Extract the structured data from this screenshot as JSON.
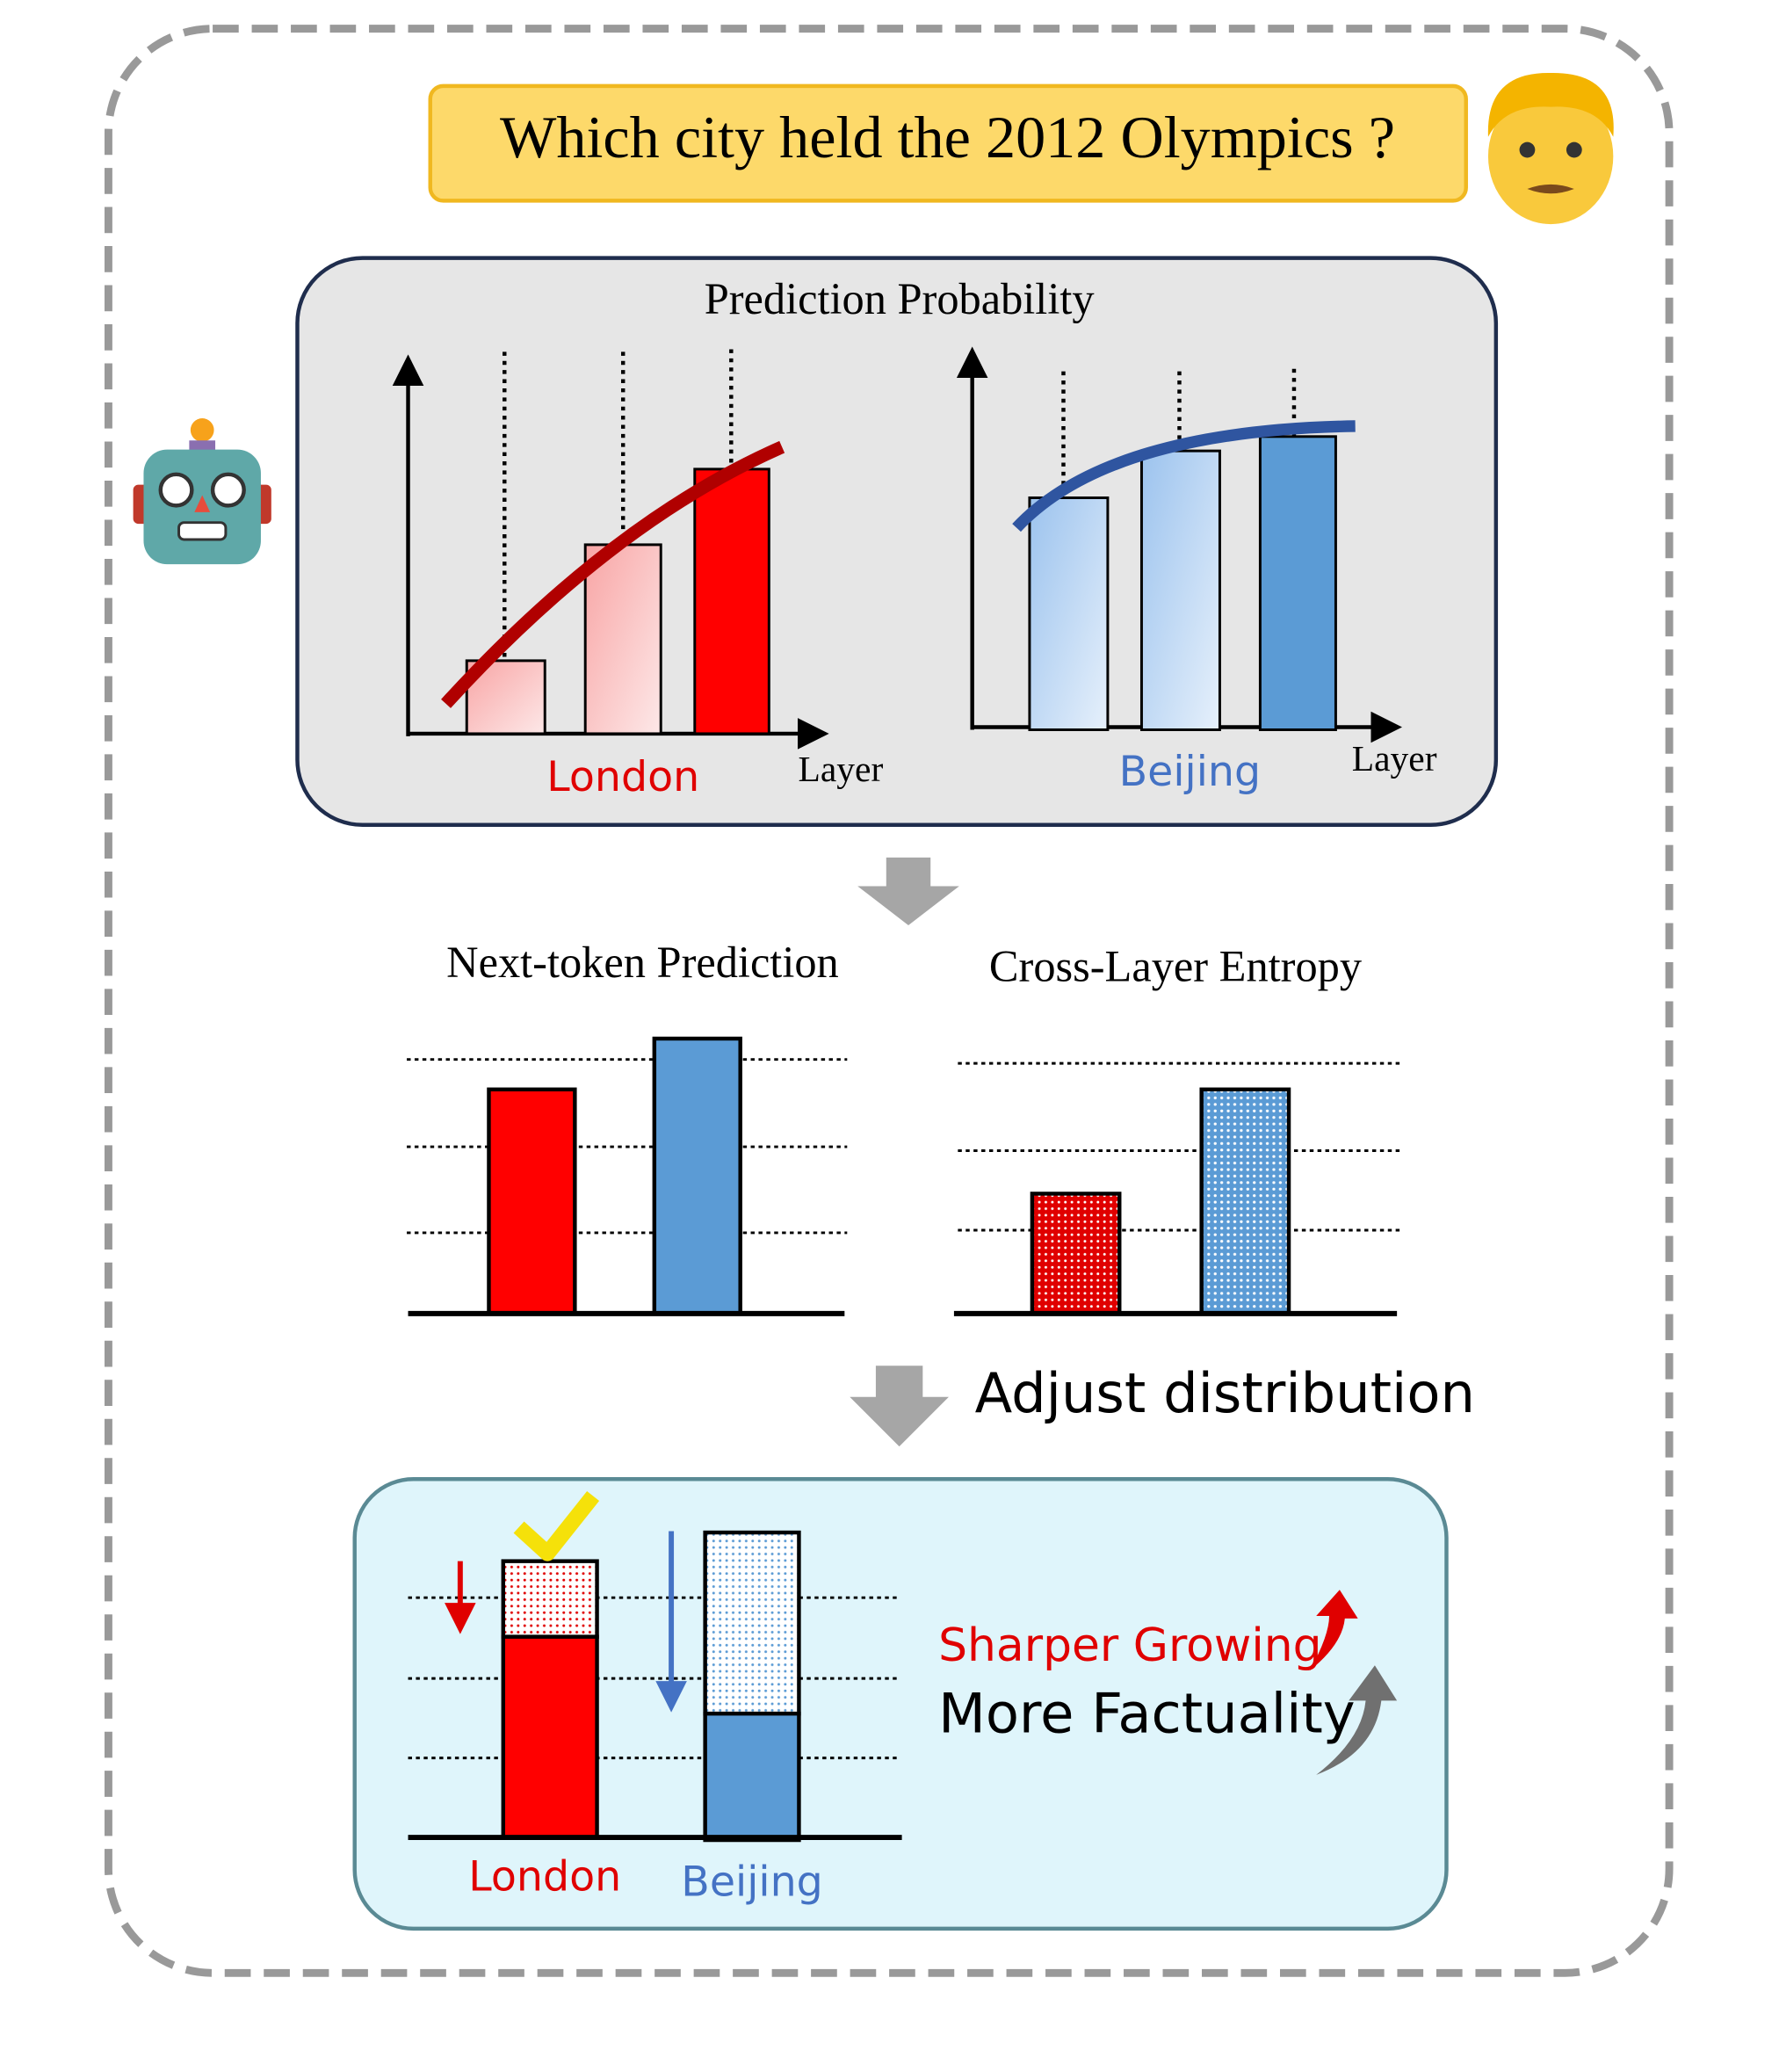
{
  "question": "Which city held the 2012 Olympics ?",
  "prediction_panel": {
    "title": "Prediction Probability",
    "left": {
      "label": "London",
      "axis": "Layer"
    },
    "right": {
      "label": "Beijing",
      "axis": "Layer"
    }
  },
  "comparison": {
    "left_title": "Next-token Prediction",
    "right_title": "Cross-Layer Entropy"
  },
  "step_label": "Adjust distribution",
  "result": {
    "categories": [
      "London",
      "Beijing"
    ],
    "notes": [
      "Sharper Growing",
      "More Factuality"
    ]
  }
}
